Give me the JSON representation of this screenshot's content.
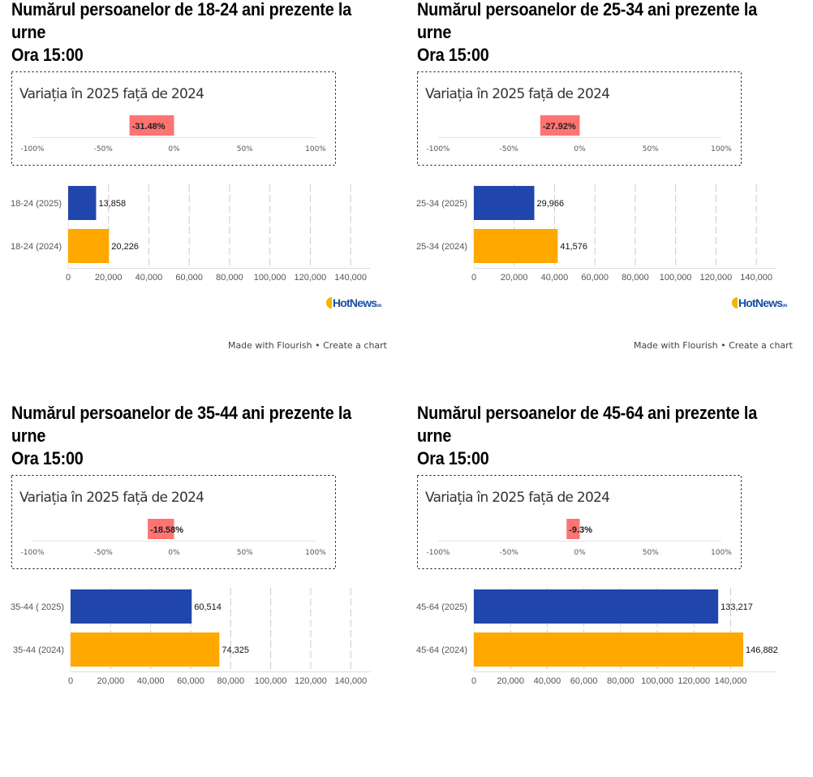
{
  "chart_data": [
    {
      "type": "bar",
      "title_lines": [
        "Numărul persoanelor de 18-24 ani prezente la",
        "urne",
        "Ora 15:00"
      ],
      "variation": {
        "title": "Variația în 2025 față de 2024",
        "value": -31.48,
        "label": "-31.48%",
        "ticks": [
          "-100%",
          "-50%",
          "0%",
          "50%",
          "100%"
        ],
        "range": [
          -100,
          100
        ],
        "color": "#ff7373"
      },
      "categories": [
        "18-24 (2025)",
        "18-24 (2024)"
      ],
      "values": [
        13858,
        20226
      ],
      "value_labels": [
        "13,858",
        "20,226"
      ],
      "colors": [
        "#2146ab",
        "#ffa800"
      ],
      "xticks": [
        "0",
        "20,000",
        "40,000",
        "60,000",
        "80,000",
        "100,000",
        "120,000",
        "140,000"
      ],
      "xlim": [
        0,
        150000
      ],
      "grid": true,
      "logo": "HotNews.ro",
      "footer": "Made with Flourish • Create a chart"
    },
    {
      "type": "bar",
      "title_lines": [
        "Numărul persoanelor de 25-34 ani prezente la",
        "urne",
        "Ora 15:00"
      ],
      "variation": {
        "title": "Variația în 2025 față de 2024",
        "value": -27.92,
        "label": "-27.92%",
        "ticks": [
          "-100%",
          "-50%",
          "0%",
          "50%",
          "100%"
        ],
        "range": [
          -100,
          100
        ],
        "color": "#ff7373"
      },
      "categories": [
        "25-34 (2025)",
        "25-34 (2024)"
      ],
      "values": [
        29966,
        41576
      ],
      "value_labels": [
        "29,966",
        "41,576"
      ],
      "colors": [
        "#2146ab",
        "#ffa800"
      ],
      "xticks": [
        "0",
        "20,000",
        "40,000",
        "60,000",
        "80,000",
        "100,000",
        "120,000",
        "140,000"
      ],
      "xlim": [
        0,
        150000
      ],
      "grid": true,
      "logo": "HotNews.ro",
      "footer": "Made with Flourish • Create a chart"
    },
    {
      "type": "bar",
      "title_lines": [
        "Numărul persoanelor de 35-44 ani prezente la",
        "urne",
        "Ora 15:00"
      ],
      "variation": {
        "title": "Variația în 2025 față de 2024",
        "value": -18.58,
        "label": "-18.58%",
        "ticks": [
          "-100%",
          "-50%",
          "0%",
          "50%",
          "100%"
        ],
        "range": [
          -100,
          100
        ],
        "color": "#ff7373"
      },
      "categories": [
        "35-44 ( 2025)",
        "35-44 (2024)"
      ],
      "values": [
        60514,
        74325
      ],
      "value_labels": [
        "60,514",
        "74,325"
      ],
      "colors": [
        "#2146ab",
        "#ffa800"
      ],
      "xticks": [
        "0",
        "20,000",
        "40,000",
        "60,000",
        "80,000",
        "100,000",
        "120,000",
        "140,000"
      ],
      "xlim": [
        0,
        150000
      ],
      "grid": true
    },
    {
      "type": "bar",
      "title_lines": [
        "Numărul persoanelor de 45-64 ani prezente la",
        "urne",
        "Ora 15:00"
      ],
      "variation": {
        "title": "Variația în 2025 față de 2024",
        "value": -9.3,
        "label": "-9.3%",
        "ticks": [
          "-100%",
          "-50%",
          "0%",
          "50%",
          "100%"
        ],
        "range": [
          -100,
          100
        ],
        "color": "#ff7373"
      },
      "categories": [
        "45-64 (2025)",
        "45-64 (2024)"
      ],
      "values": [
        133217,
        146882
      ],
      "value_labels": [
        "133,217",
        "146,882"
      ],
      "colors": [
        "#2146ab",
        "#ffa800"
      ],
      "xticks": [
        "0",
        "20,000",
        "40,000",
        "60,000",
        "80,000",
        "100,000",
        "120,000",
        "140,000"
      ],
      "xlim": [
        0,
        165000
      ],
      "grid": true
    }
  ]
}
